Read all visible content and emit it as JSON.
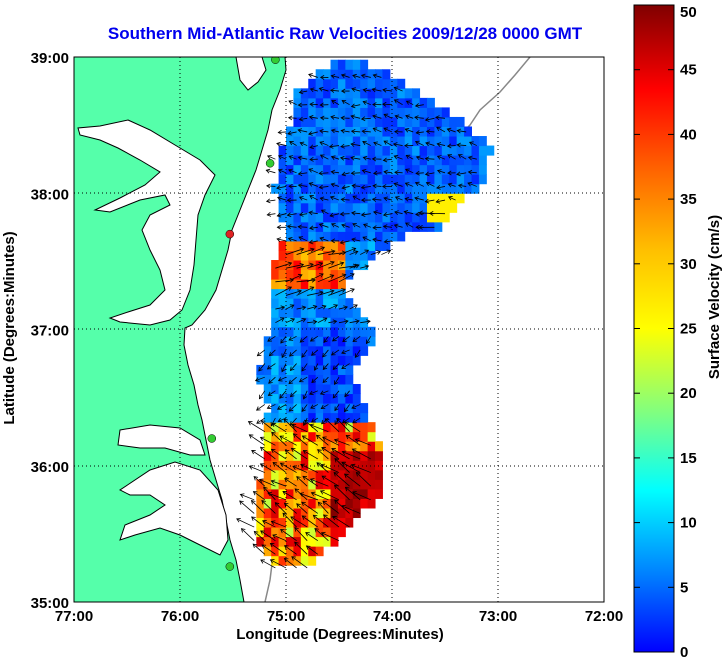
{
  "chart_data": {
    "type": "map",
    "title": "Southern Mid-Atlantic Raw Velocities 2009/12/28 0000 GMT",
    "xlabel": "Longitude (Degrees:Minutes)",
    "ylabel": "Latitude (Degrees:Minutes)",
    "xlim": [
      -77,
      -72
    ],
    "ylim": [
      35,
      39
    ],
    "xticks": [
      {
        "value": -77,
        "label": "77:00"
      },
      {
        "value": -76,
        "label": "76:00"
      },
      {
        "value": -75,
        "label": "75:00"
      },
      {
        "value": -74,
        "label": "74:00"
      },
      {
        "value": -73,
        "label": "73:00"
      },
      {
        "value": -72,
        "label": "72:00"
      }
    ],
    "yticks": [
      {
        "value": 39,
        "label": "39:00"
      },
      {
        "value": 38,
        "label": "38:00"
      },
      {
        "value": 37,
        "label": "37:00"
      },
      {
        "value": 36,
        "label": "36:00"
      },
      {
        "value": 35,
        "label": "35:00"
      }
    ],
    "grid": "dotted",
    "colorbar": {
      "label": "Surface Velocity (cm/s)",
      "min": 0,
      "max": 50,
      "ticks": [
        "0",
        "5",
        "10",
        "15",
        "20",
        "25",
        "30",
        "35",
        "40",
        "45",
        "50"
      ],
      "colormap": "jet"
    },
    "stations": [
      {
        "lon": -75.1,
        "lat": 38.98,
        "color": "#33cc33"
      },
      {
        "lon": -75.15,
        "lat": 38.22,
        "color": "#33cc33"
      },
      {
        "lon": -75.53,
        "lat": 37.7,
        "color": "#dd2222"
      },
      {
        "lon": -75.7,
        "lat": 36.2,
        "color": "#33cc33"
      },
      {
        "lon": -75.53,
        "lat": 35.26,
        "color": "#33cc33"
      }
    ],
    "colors": {
      "land": "#55ffaa",
      "coast": "#000000",
      "bathymetry": "#888888",
      "title": "#0000ee"
    }
  }
}
